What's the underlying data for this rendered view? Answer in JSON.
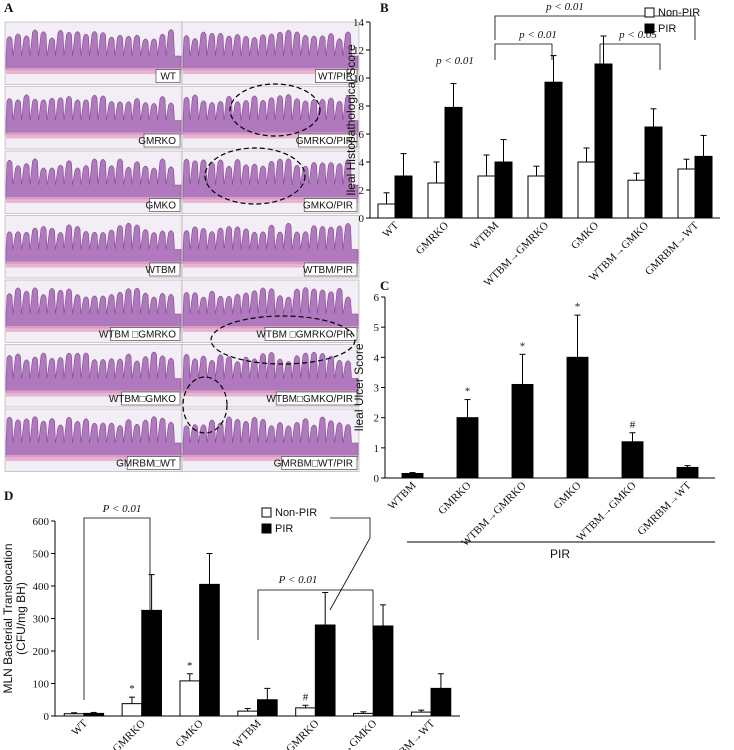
{
  "panel_a": {
    "panel_label": "A",
    "left": [
      "WT",
      "GMRKO",
      "GMKO",
      "WTBM",
      "WTBM □GMRKO",
      "WTBM□GMKO",
      "GMRBM□WT"
    ],
    "right": [
      "WT/PIR",
      "GMRKO/PIR",
      "GMKO/PIR",
      "WTBM/PIR",
      "WTBM □GMRKO/PIR",
      "WTBM□GMKO/PIR",
      "GMRBM□WT/PIR"
    ]
  },
  "chart_data": [
    {
      "type": "bar",
      "panel_label": "B",
      "y_label": "Ileal Histopathological Score",
      "categories": [
        "WT",
        "GMRKO",
        "WTBM",
        "WTBM→GMRKO",
        "GMKO",
        "WTBM→GMKO",
        "GMRBM→WT"
      ],
      "series": [
        {
          "name": "Non-PIR",
          "color": "#ffffff",
          "values": [
            1,
            2.5,
            3,
            3,
            4,
            2.7,
            3.5
          ],
          "errors": [
            0.8,
            1.5,
            1.5,
            0.7,
            1,
            0.5,
            0.7
          ]
        },
        {
          "name": "PIR",
          "color": "#000000",
          "values": [
            3,
            7.9,
            4,
            9.7,
            11,
            6.5,
            4.4
          ],
          "errors": [
            1.6,
            1.7,
            1.6,
            1.9,
            2,
            1.3,
            1.5
          ]
        }
      ],
      "ylim": [
        0,
        14
      ],
      "yticks": [
        0,
        2,
        4,
        6,
        8,
        10,
        12,
        14
      ],
      "annotations": [
        "p < 0.01",
        "p < 0.01",
        "p < 0.01",
        "p < 0.05"
      ],
      "legend": "top-right"
    },
    {
      "type": "bar",
      "panel_label": "C",
      "y_label": "Ileal Ulcer Score",
      "group_label": "PIR",
      "categories": [
        "WTBM",
        "GMRKO",
        "WTBM→GMRKO",
        "GMKO",
        "WTBM→GMKO",
        "GMRBM→WT"
      ],
      "values": [
        0.15,
        2.0,
        3.1,
        4.0,
        1.2,
        0.35
      ],
      "errors": [
        0.03,
        0.6,
        1.0,
        1.4,
        0.3,
        0.06
      ],
      "significance": [
        null,
        "*",
        "*",
        "*",
        "#",
        null
      ],
      "color": "#000000",
      "ylim": [
        0,
        6
      ],
      "yticks": [
        0,
        1,
        2,
        3,
        4,
        5,
        6
      ]
    },
    {
      "type": "bar",
      "panel_label": "D",
      "y_label": [
        "MLN  Bacterial Translocation",
        "(CFU/mg BH)"
      ],
      "categories": [
        "WT",
        "GMRKO",
        "GMKO",
        "WTBM",
        "WTBM→GMRKO",
        "WTBM→GMKO",
        "GMRBM→WT"
      ],
      "series": [
        {
          "name": "Non-PIR",
          "color": "#ffffff",
          "values": [
            7,
            38,
            108,
            15,
            25,
            8,
            12
          ],
          "errors": [
            3,
            20,
            22,
            8,
            8,
            5,
            6
          ],
          "significance": [
            null,
            "*",
            "*",
            null,
            "#",
            null,
            null
          ]
        },
        {
          "name": "PIR",
          "color": "#000000",
          "values": [
            8,
            325,
            405,
            50,
            280,
            277,
            85
          ],
          "errors": [
            3,
            110,
            95,
            35,
            100,
            65,
            45
          ]
        }
      ],
      "ylim": [
        0,
        600
      ],
      "yticks": [
        0,
        100,
        200,
        300,
        400,
        500,
        600
      ],
      "annotations": [
        "P < 0.01",
        "P < 0.01"
      ],
      "legend": "top-right"
    }
  ]
}
